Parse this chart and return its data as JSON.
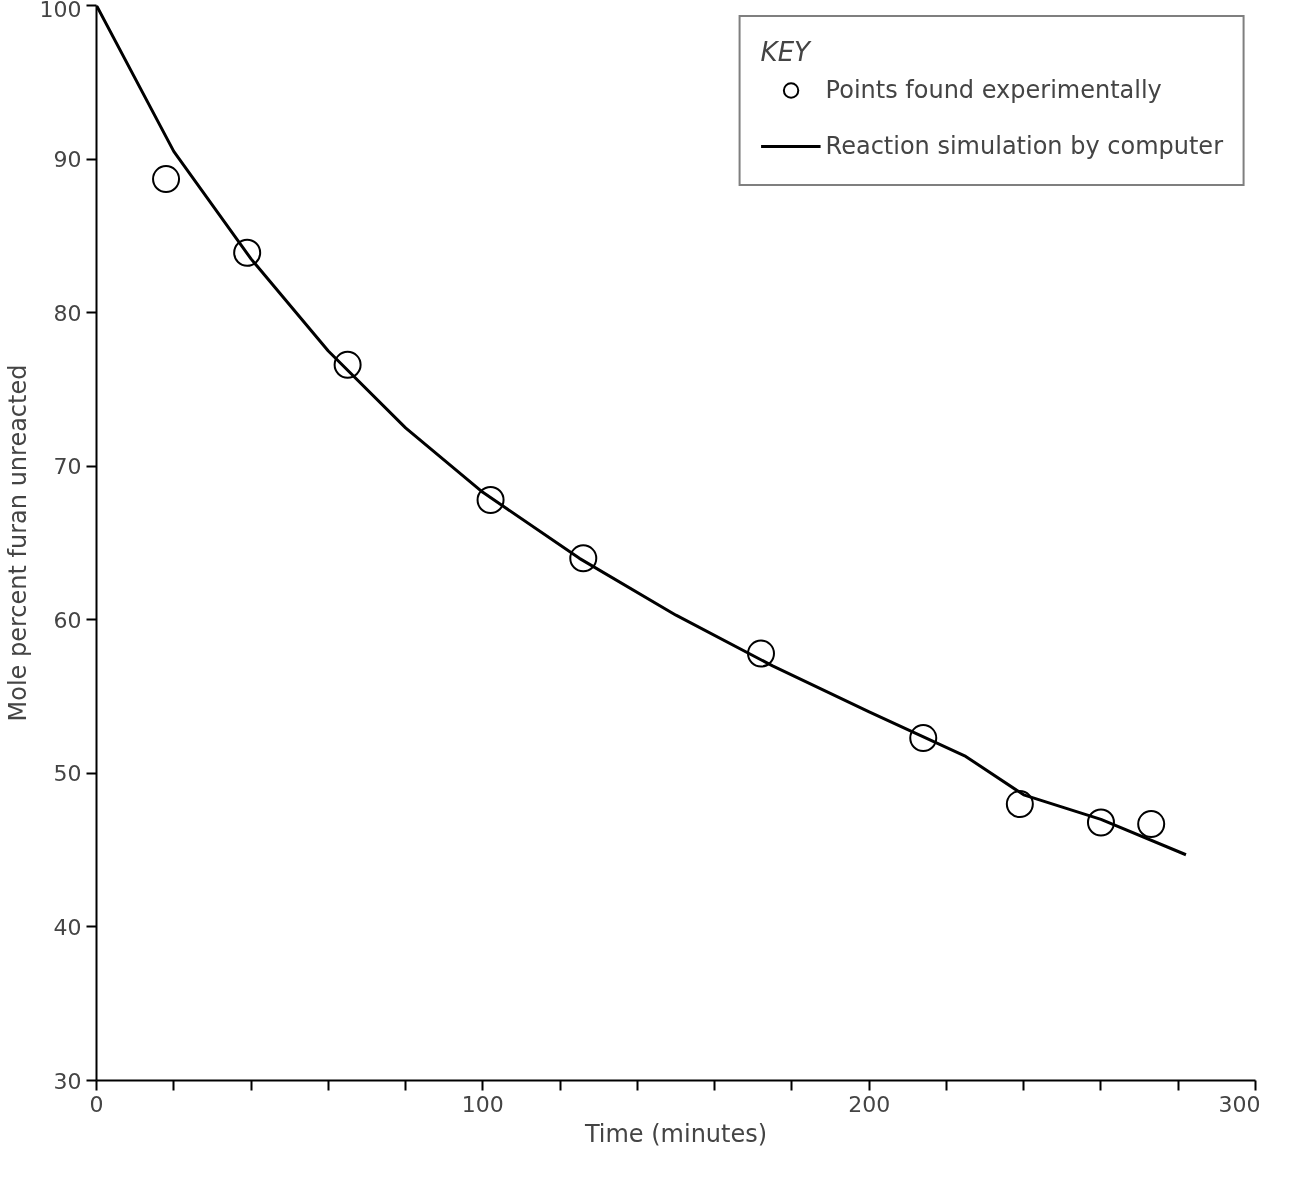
{
  "chart_data": {
    "type": "scatter",
    "xlabel": "Time (minutes)",
    "ylabel": "Mole percent furan unreacted",
    "legend_title": "KEY",
    "xlim": [
      0,
      300
    ],
    "ylim": [
      30,
      100
    ],
    "xticks": [
      0,
      {
        "value": 20,
        "label": null
      },
      {
        "value": 40,
        "label": null
      },
      {
        "value": 60,
        "label": null
      },
      {
        "value": 80,
        "label": null
      },
      100,
      {
        "value": 120,
        "label": null
      },
      {
        "value": 140,
        "label": null
      },
      {
        "value": 160,
        "label": null
      },
      {
        "value": 180,
        "label": null
      },
      200,
      {
        "value": 220,
        "label": null
      },
      {
        "value": 240,
        "label": null
      },
      {
        "value": 260,
        "label": null
      },
      {
        "value": 280,
        "label": null
      },
      300
    ],
    "yticks": [
      30,
      40,
      50,
      60,
      70,
      80,
      90,
      100
    ],
    "grid": false,
    "legend": "top right",
    "series": [
      {
        "name": "Points found experimentally",
        "marker": "circle",
        "color": "#000000",
        "x": [
          18,
          39,
          65,
          102,
          126,
          172,
          214,
          239,
          260,
          273
        ],
        "values": [
          88.7,
          83.9,
          76.6,
          67.8,
          64.0,
          57.8,
          52.3,
          48.0,
          46.8,
          46.7
        ]
      },
      {
        "name": "Reaction simulation by computer",
        "type": "line",
        "marker": "none",
        "color": "#000000",
        "x": [
          0,
          20,
          40,
          60,
          80,
          100,
          125,
          150,
          175,
          200,
          225,
          240,
          260,
          282
        ],
        "values": [
          100,
          90.5,
          83.5,
          77.5,
          72.5,
          68.3,
          64.0,
          60.3,
          57.0,
          54.0,
          51.1,
          48.6,
          47.0,
          44.7
        ]
      }
    ]
  }
}
